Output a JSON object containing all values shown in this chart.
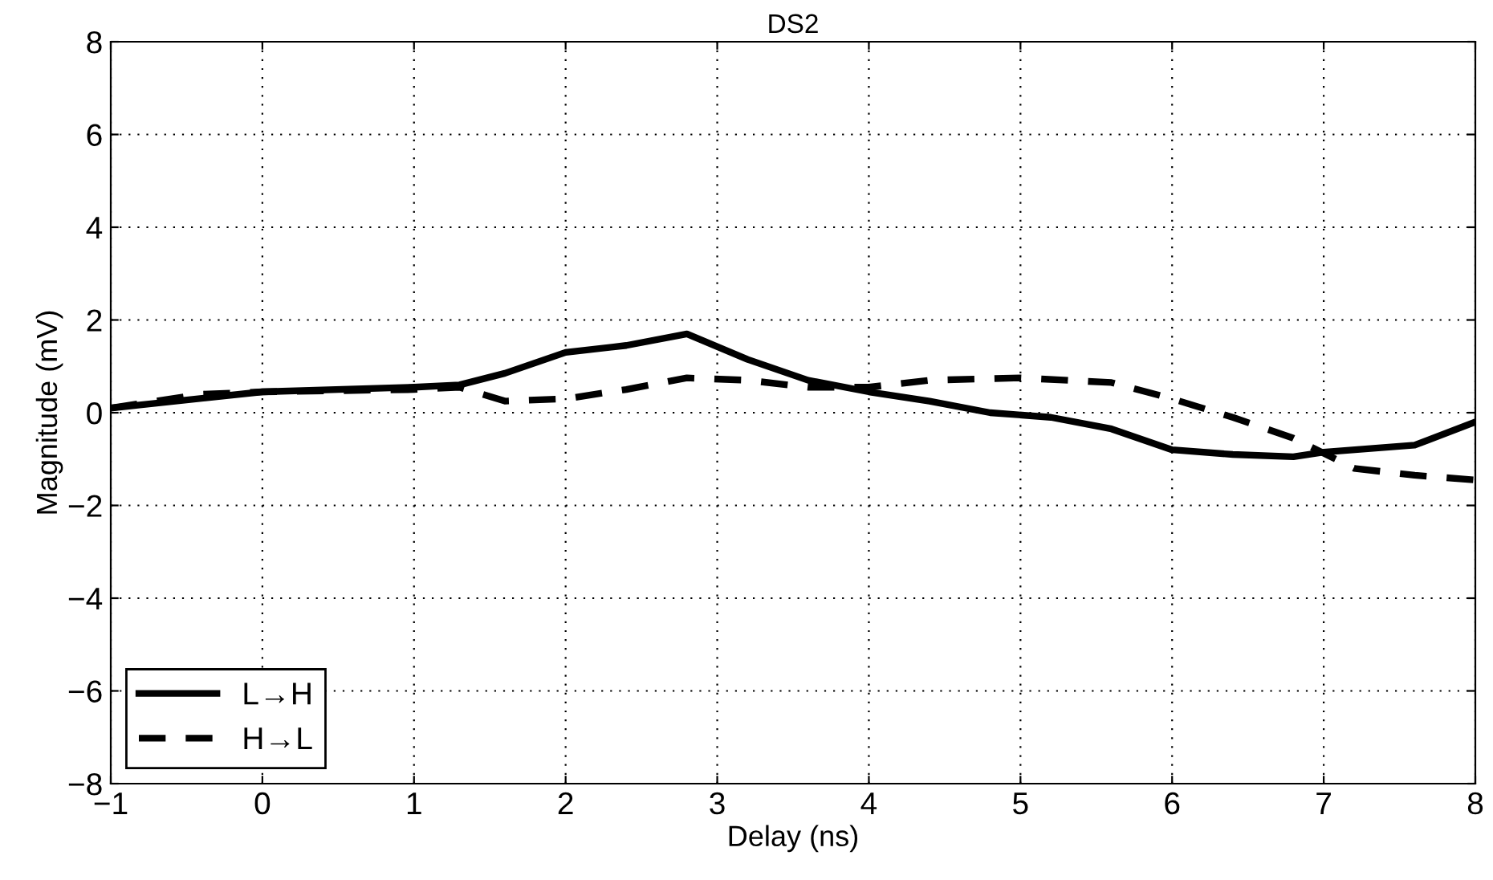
{
  "chart_data": {
    "type": "line",
    "title": "DS2",
    "xlabel": "Delay (ns)",
    "ylabel": "Magnitude (mV)",
    "xlim": [
      -1,
      8
    ],
    "xticks": [
      {
        "value": -1,
        "label": "−1"
      },
      0,
      1,
      2,
      3,
      4,
      5,
      6,
      7,
      8
    ],
    "ylim": [
      -8,
      8
    ],
    "yticks": [
      {
        "value": -8,
        "label": "−8"
      },
      {
        "value": -6,
        "label": "−6"
      },
      {
        "value": -4,
        "label": "−4"
      },
      {
        "value": -2,
        "label": "−2"
      },
      0,
      2,
      4,
      6,
      8
    ],
    "grid": true,
    "legend": "bottom left",
    "series": [
      {
        "name": "L→H",
        "color": "#000000",
        "line_style": "solid",
        "x": [
          -1,
          0,
          1,
          1.3,
          1.6,
          2,
          2.4,
          2.8,
          3.2,
          3.6,
          4,
          4.4,
          4.8,
          5.2,
          5.6,
          6,
          6.4,
          6.8,
          7,
          7.6,
          8
        ],
        "values": [
          0.1,
          0.45,
          0.55,
          0.6,
          0.85,
          1.3,
          1.45,
          1.7,
          1.15,
          0.7,
          0.45,
          0.25,
          0.0,
          -0.1,
          -0.35,
          -0.8,
          -0.9,
          -0.95,
          -0.85,
          -0.7,
          -0.2
        ]
      },
      {
        "name": "H→L",
        "color": "#000000",
        "line_style": "dashed",
        "x": [
          -1,
          -0.4,
          0,
          1,
          1.3,
          1.6,
          2,
          2.4,
          2.8,
          3.2,
          3.6,
          4,
          4.4,
          5,
          5.6,
          6,
          6.4,
          6.8,
          7.2,
          7.6,
          8
        ],
        "values": [
          0.1,
          0.4,
          0.45,
          0.5,
          0.55,
          0.25,
          0.3,
          0.5,
          0.75,
          0.7,
          0.55,
          0.55,
          0.7,
          0.75,
          0.65,
          0.3,
          -0.1,
          -0.55,
          -1.2,
          -1.35,
          -1.45
        ]
      }
    ]
  }
}
